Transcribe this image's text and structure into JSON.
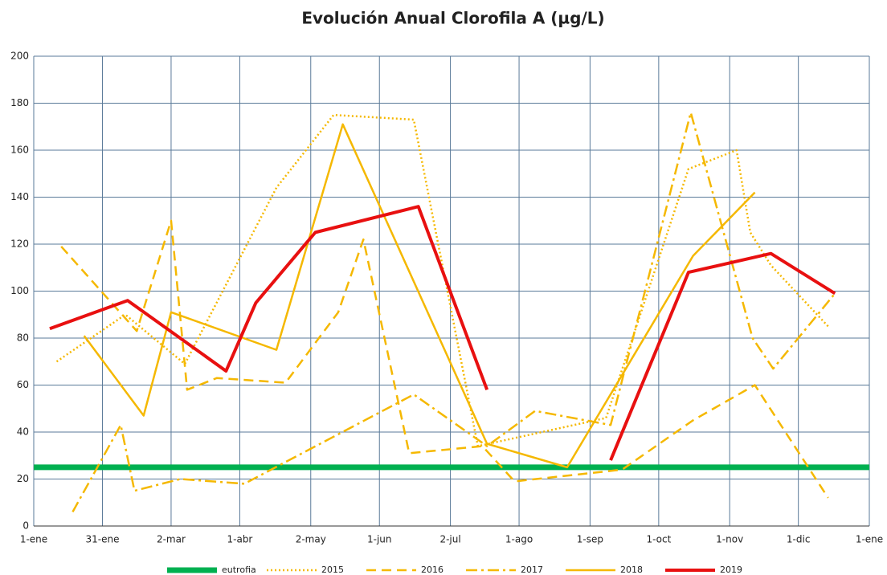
{
  "chart_data": {
    "type": "line",
    "title": "Evolución Anual Clorofila A (µg/L)",
    "xlim": [
      0,
      365
    ],
    "xticks": [
      {
        "value": 0,
        "label": "1-ene"
      },
      {
        "value": 30,
        "label": "31-ene"
      },
      {
        "value": 60,
        "label": "2-mar"
      },
      {
        "value": 90,
        "label": "1-abr"
      },
      {
        "value": 121,
        "label": "2-may"
      },
      {
        "value": 151,
        "label": "1-jun"
      },
      {
        "value": 182,
        "label": "2-jul"
      },
      {
        "value": 212,
        "label": "1-ago"
      },
      {
        "value": 243,
        "label": "1-sep"
      },
      {
        "value": 273,
        "label": "1-oct"
      },
      {
        "value": 304,
        "label": "1-nov"
      },
      {
        "value": 334,
        "label": "1-dic"
      },
      {
        "value": 365,
        "label": "1-ene"
      }
    ],
    "ylim": [
      0,
      200
    ],
    "yticks": [
      0,
      20,
      40,
      60,
      80,
      100,
      120,
      140,
      160,
      180,
      200
    ],
    "grid": true,
    "legend": "bottom",
    "series": [
      {
        "name": "eutrofia",
        "color": "#00b050",
        "dash": "solid",
        "width": 7,
        "x": [
          0,
          365
        ],
        "values": [
          25,
          25
        ]
      },
      {
        "name": "2015",
        "color": "#f5b800",
        "dash": "dotted",
        "width": 2.5,
        "x": [
          10,
          40,
          66,
          106,
          131,
          166,
          194,
          250,
          286,
          307,
          313,
          322,
          347
        ],
        "values": [
          70,
          90,
          69,
          144,
          175,
          173,
          34,
          46,
          152,
          160,
          125,
          111,
          85
        ]
      },
      {
        "name": "2016",
        "color": "#f5b800",
        "dash": "dashed",
        "width": 2.5,
        "x": [
          12,
          45,
          60,
          67,
          80,
          110,
          133,
          144,
          164,
          196,
          210,
          257,
          288,
          315,
          347
        ],
        "values": [
          119,
          83,
          130,
          58,
          63,
          61,
          91,
          122,
          31,
          34,
          19,
          24,
          45,
          60,
          12
        ]
      },
      {
        "name": "2017",
        "color": "#f5b800",
        "dash": "dashdot",
        "width": 2.5,
        "x": [
          17,
          38,
          44,
          64,
          92,
          166,
          198,
          219,
          241,
          252,
          287,
          314,
          323,
          350
        ],
        "values": [
          6,
          43,
          15,
          20,
          18,
          56,
          34,
          49,
          45,
          43,
          176,
          80,
          67,
          99
        ]
      },
      {
        "name": "2018",
        "color": "#f5b800",
        "dash": "solid",
        "width": 2.5,
        "x": [
          22,
          48,
          60,
          106,
          135,
          198,
          233,
          288,
          315
        ],
        "values": [
          81,
          47,
          91,
          75,
          171,
          35,
          25,
          115,
          142
        ]
      },
      {
        "name": "2019",
        "color": "#e81010",
        "dash": "solid",
        "width": 4,
        "x": [
          7,
          41,
          84,
          97,
          123,
          168,
          198,
          225,
          252,
          286,
          322,
          350
        ],
        "values": [
          84,
          96,
          66,
          95,
          125,
          136,
          58,
          null,
          28,
          108,
          116,
          99
        ]
      }
    ]
  }
}
